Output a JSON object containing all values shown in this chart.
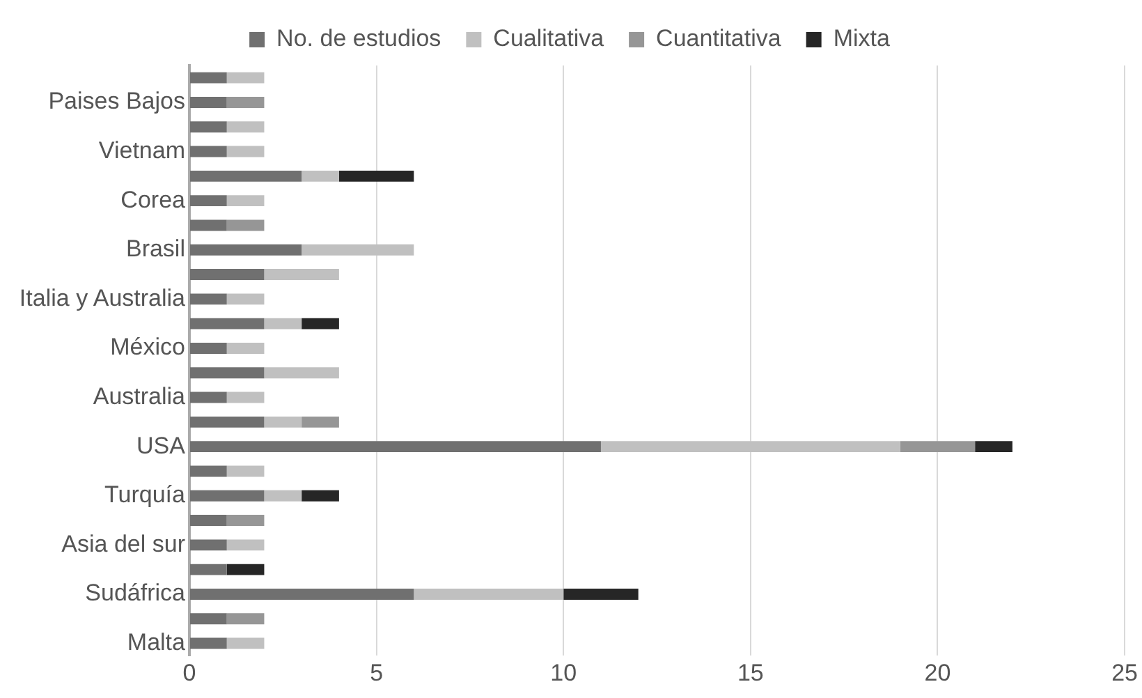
{
  "chart_data": {
    "type": "bar",
    "orientation": "horizontal",
    "stacked": true,
    "categories": [
      null,
      "Paises Bajos",
      null,
      "Vietnam",
      null,
      "Corea",
      null,
      "Brasil",
      null,
      "Italia y Australia",
      null,
      "México",
      null,
      "Australia",
      null,
      "USA",
      null,
      "Turquía",
      null,
      "Asia del sur",
      null,
      "Sudáfrica",
      null,
      "Malta"
    ],
    "series": [
      {
        "name": "No. de estudios",
        "color": "#707070",
        "values": [
          1,
          1,
          1,
          1,
          3,
          1,
          1,
          3,
          2,
          1,
          2,
          1,
          2,
          1,
          2,
          11,
          1,
          2,
          1,
          1,
          1,
          6,
          1,
          1
        ]
      },
      {
        "name": "Cualitativa",
        "color": "#c0c0c0",
        "values": [
          1,
          0,
          1,
          1,
          1,
          1,
          0,
          3,
          2,
          1,
          1,
          1,
          2,
          1,
          1,
          8,
          1,
          1,
          0,
          1,
          0,
          4,
          0,
          1
        ]
      },
      {
        "name": "Cuantitativa",
        "color": "#969696",
        "values": [
          0,
          1,
          0,
          0,
          0,
          0,
          1,
          0,
          0,
          0,
          0,
          0,
          0,
          0,
          1,
          2,
          0,
          0,
          1,
          0,
          0,
          0,
          1,
          0
        ]
      },
      {
        "name": "Mixta",
        "color": "#262626",
        "values": [
          0,
          0,
          0,
          0,
          2,
          0,
          0,
          0,
          0,
          0,
          1,
          0,
          0,
          0,
          0,
          1,
          0,
          1,
          0,
          0,
          1,
          2,
          0,
          0
        ]
      }
    ],
    "xlim": [
      0,
      25
    ],
    "xticks": [
      0,
      5,
      10,
      15,
      20,
      25
    ],
    "grid": "x",
    "legend": "top"
  }
}
